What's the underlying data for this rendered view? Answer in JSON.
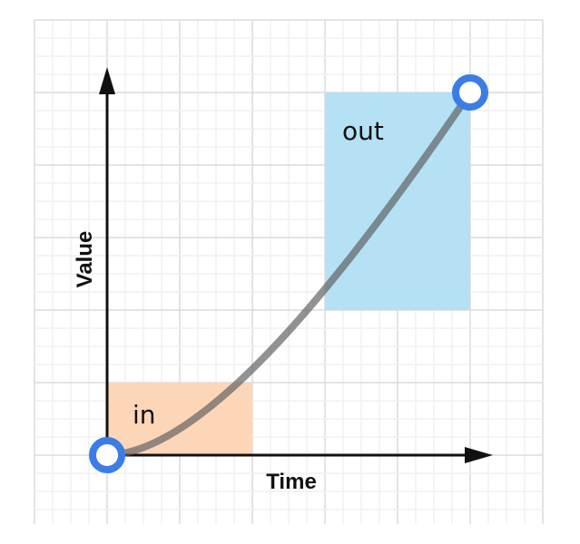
{
  "axes": {
    "y_label": "Value",
    "x_label": "Time"
  },
  "regions": {
    "in": "in",
    "out": "out"
  }
}
